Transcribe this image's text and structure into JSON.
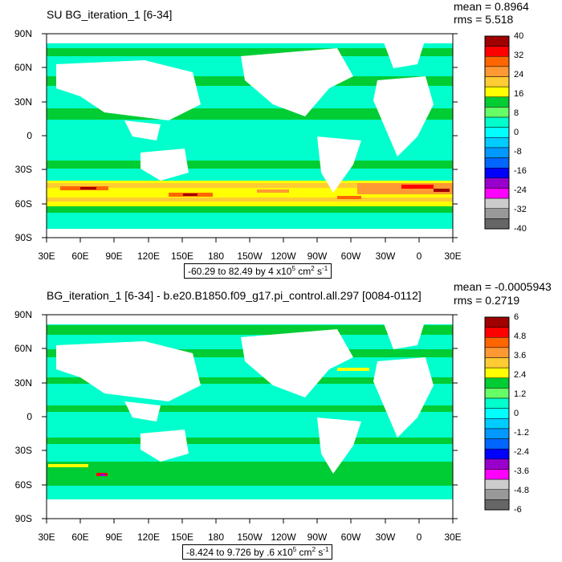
{
  "panels": [
    {
      "title": "SU BG_iteration_1 [6-34]",
      "mean_label": "mean = 0.8964",
      "rms_label": "rms = 5.518",
      "range_text": "-60.29 to 82.49 by 4 x10",
      "range_exp": "5",
      "range_unit": " cm",
      "range_unit_exp": "2",
      "range_tail": " s",
      "range_tail_exp": "-1",
      "colorbar_labels": [
        "40",
        "32",
        "24",
        "16",
        "8",
        "0",
        "-8",
        "-16",
        "-24",
        "-32",
        "-40"
      ],
      "colorbar_colors": [
        "#a00000",
        "#ff0000",
        "#ff6600",
        "#ff9933",
        "#ffcc33",
        "#ffff00",
        "#00cc33",
        "#66ff66",
        "#00ffcc",
        "#00ffff",
        "#00ccff",
        "#0099ff",
        "#0066ff",
        "#0000ff",
        "#9900cc",
        "#ff00ff",
        "#cccccc",
        "#999999",
        "#666666"
      ]
    },
    {
      "title": "BG_iteration_1 [6-34] - b.e20.B1850.f09_g17.pi_control.all.297 [0084-0112]",
      "mean_label": "mean = -0.0005943",
      "rms_label": "rms = 0.2719",
      "range_text": "-8.424 to 9.726 by .6 x10",
      "range_exp": "5",
      "range_unit": " cm",
      "range_unit_exp": "2",
      "range_tail": " s",
      "range_tail_exp": "-1",
      "colorbar_labels": [
        "6",
        "4.8",
        "3.6",
        "2.4",
        "1.2",
        "0",
        "-1.2",
        "-2.4",
        "-3.6",
        "-4.8",
        "-6"
      ],
      "colorbar_colors": [
        "#a00000",
        "#ff0000",
        "#ff6600",
        "#ff9933",
        "#ffcc33",
        "#ffff00",
        "#00cc33",
        "#66ff66",
        "#00ffcc",
        "#00ffff",
        "#00ccff",
        "#0099ff",
        "#0066ff",
        "#0000ff",
        "#9900cc",
        "#ff00ff",
        "#cccccc",
        "#999999",
        "#666666"
      ]
    }
  ],
  "axes": {
    "lat_labels": [
      "90N",
      "60N",
      "30N",
      "0",
      "30S",
      "60S",
      "90S"
    ],
    "lon_labels": [
      "30E",
      "60E",
      "90E",
      "120E",
      "150E",
      "180",
      "150W",
      "120W",
      "90W",
      "60W",
      "30W",
      "0",
      "30E"
    ]
  },
  "colors": {
    "ocean_base": "#00ffcc",
    "ocean_positive": "#00cc33",
    "land": "#ffffff"
  }
}
